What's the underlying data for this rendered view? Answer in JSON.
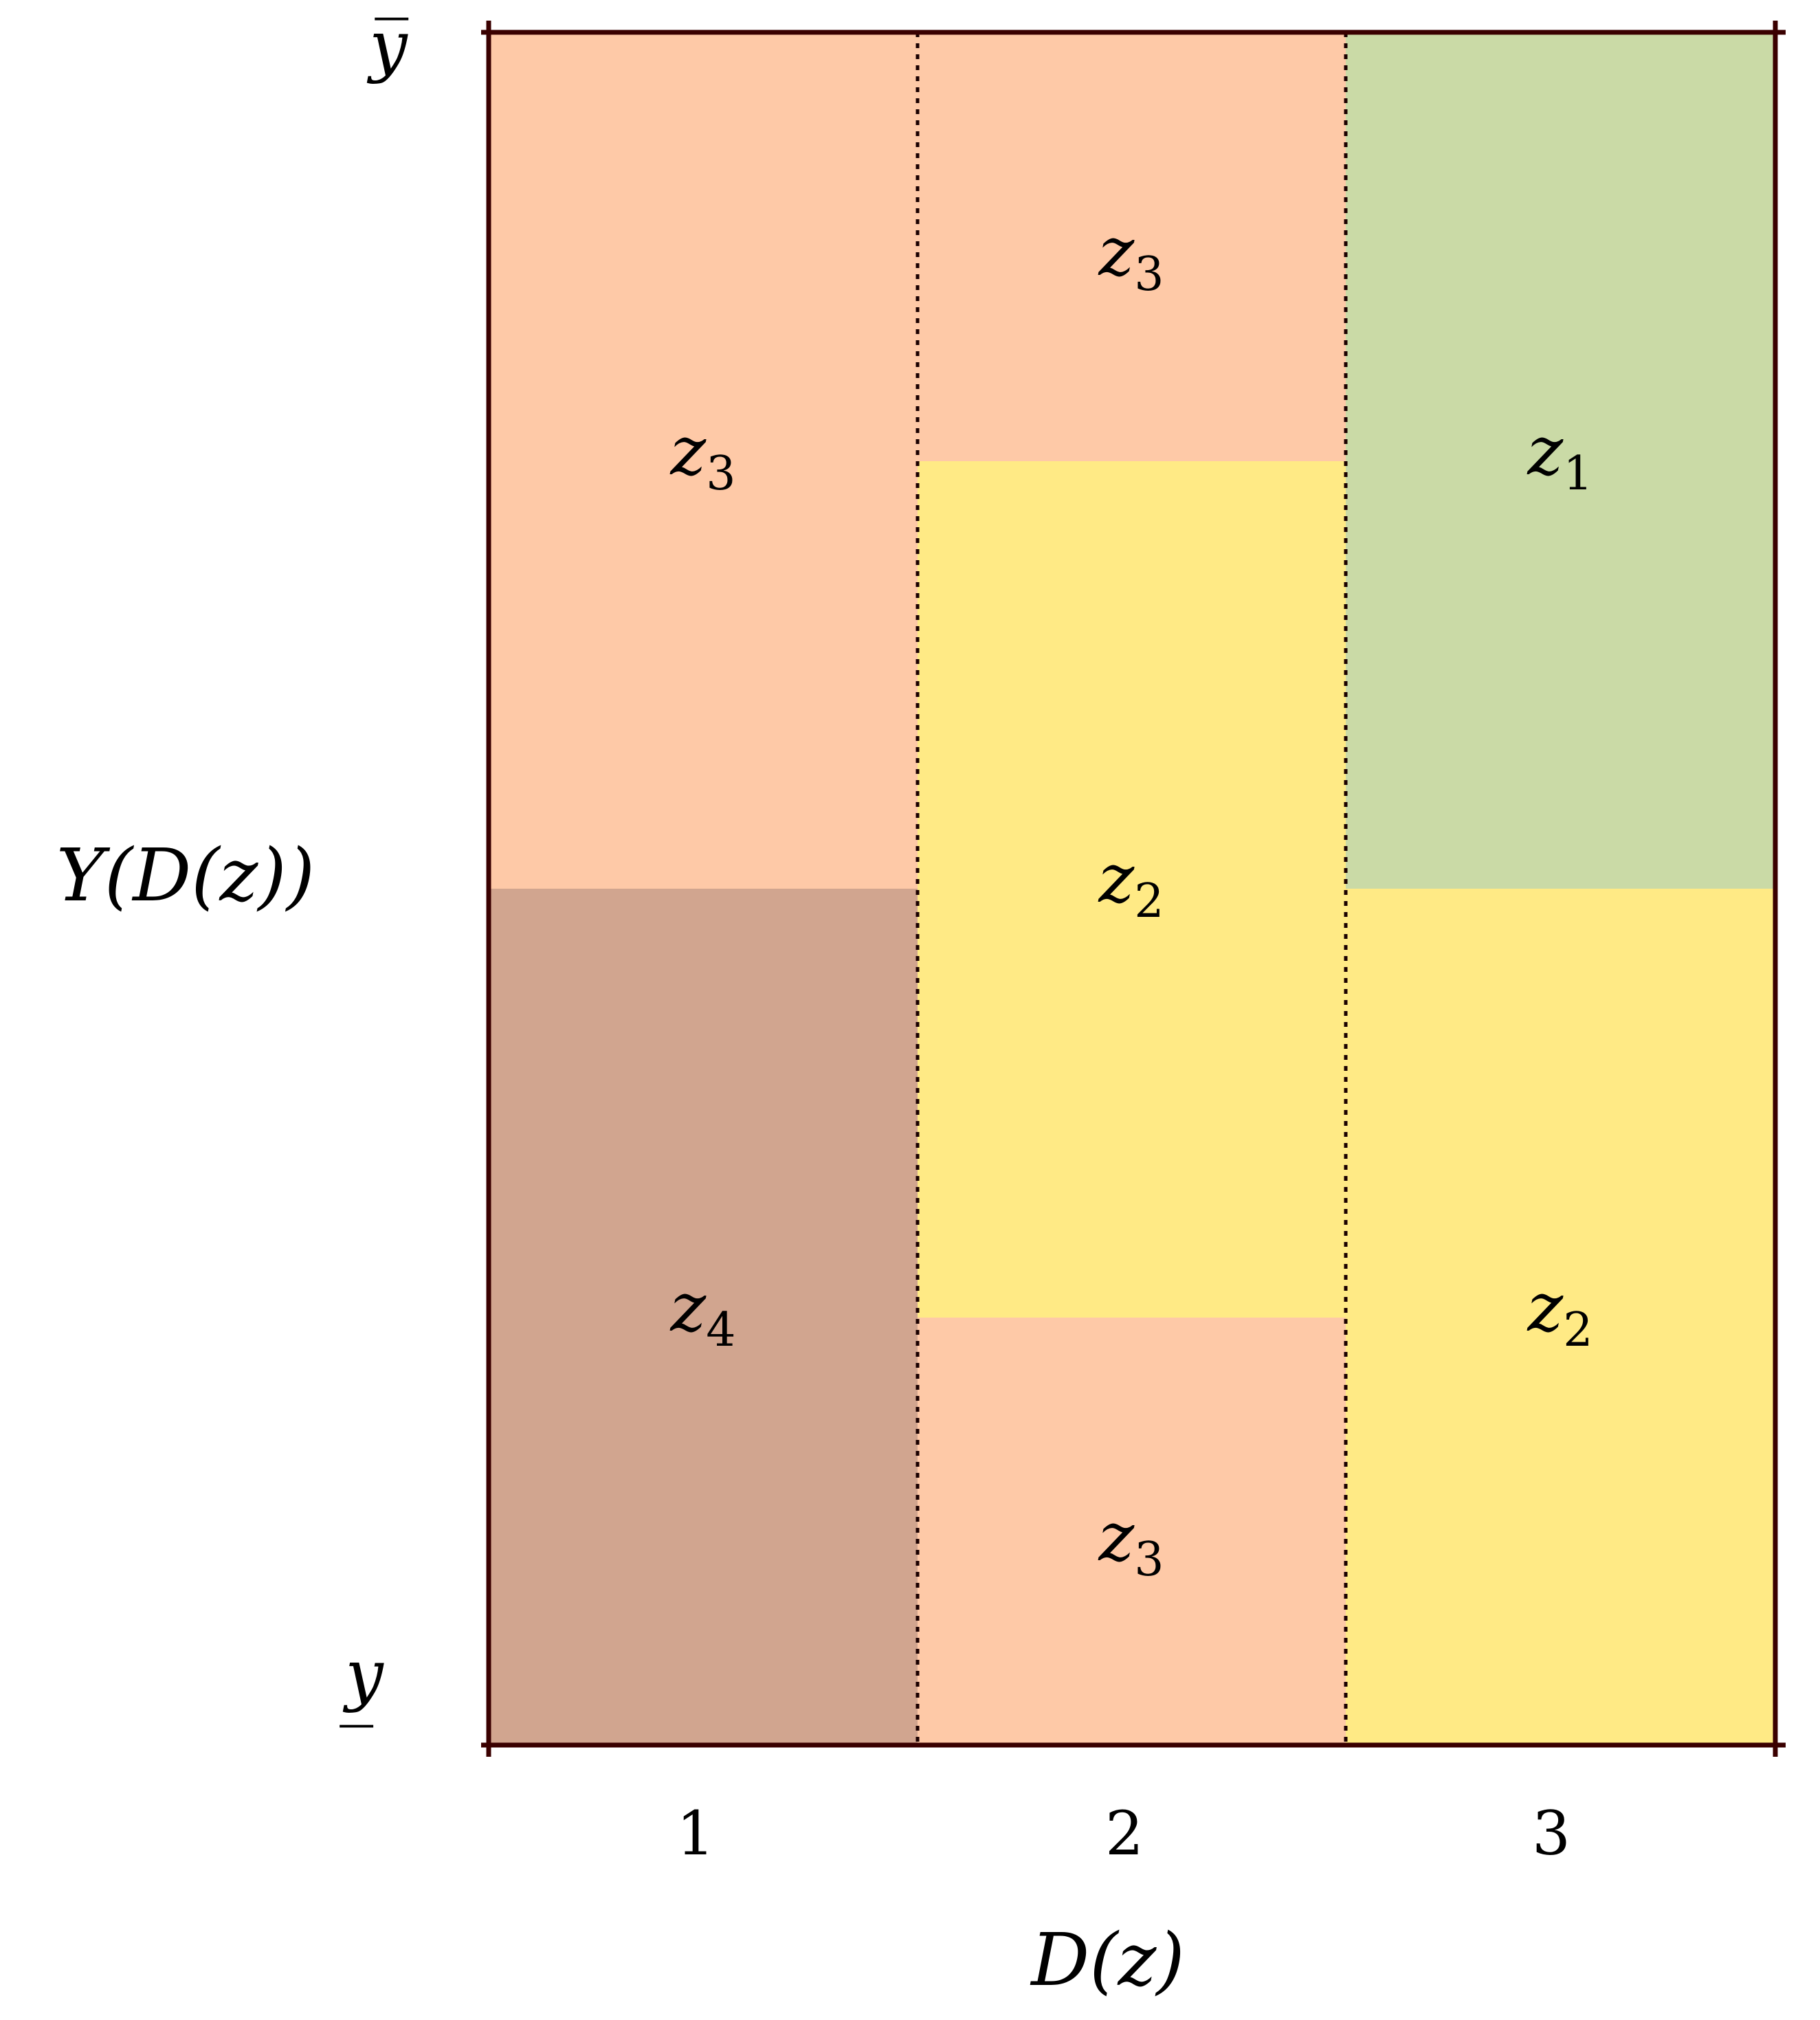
{
  "colors": {
    "z1": "#cadaa6",
    "z2": "#ffea85",
    "z3": "#fec9a7",
    "z4": "#d1a58f",
    "frame": "#3a0000"
  },
  "axes": {
    "y_label": "Y(D(z))",
    "y_top": "y̅",
    "y_bottom": "y̲",
    "x_label": "D(z)",
    "x_ticks": [
      "1",
      "2",
      "3"
    ]
  },
  "columns": [
    {
      "d": "1",
      "cells": [
        {
          "name": "z3",
          "base": "z",
          "sub": "3",
          "color": "z3"
        },
        {
          "name": "z4",
          "base": "z",
          "sub": "4",
          "color": "z4"
        }
      ]
    },
    {
      "d": "2",
      "cells": [
        {
          "name": "z3-top",
          "base": "z",
          "sub": "3",
          "color": "z3"
        },
        {
          "name": "z2",
          "base": "z",
          "sub": "2",
          "color": "z2"
        },
        {
          "name": "z3-bottom",
          "base": "z",
          "sub": "3",
          "color": "z3"
        }
      ]
    },
    {
      "d": "3",
      "cells": [
        {
          "name": "z1",
          "base": "z",
          "sub": "1",
          "color": "z1"
        },
        {
          "name": "z2",
          "base": "z",
          "sub": "2",
          "color": "z2"
        }
      ]
    }
  ]
}
